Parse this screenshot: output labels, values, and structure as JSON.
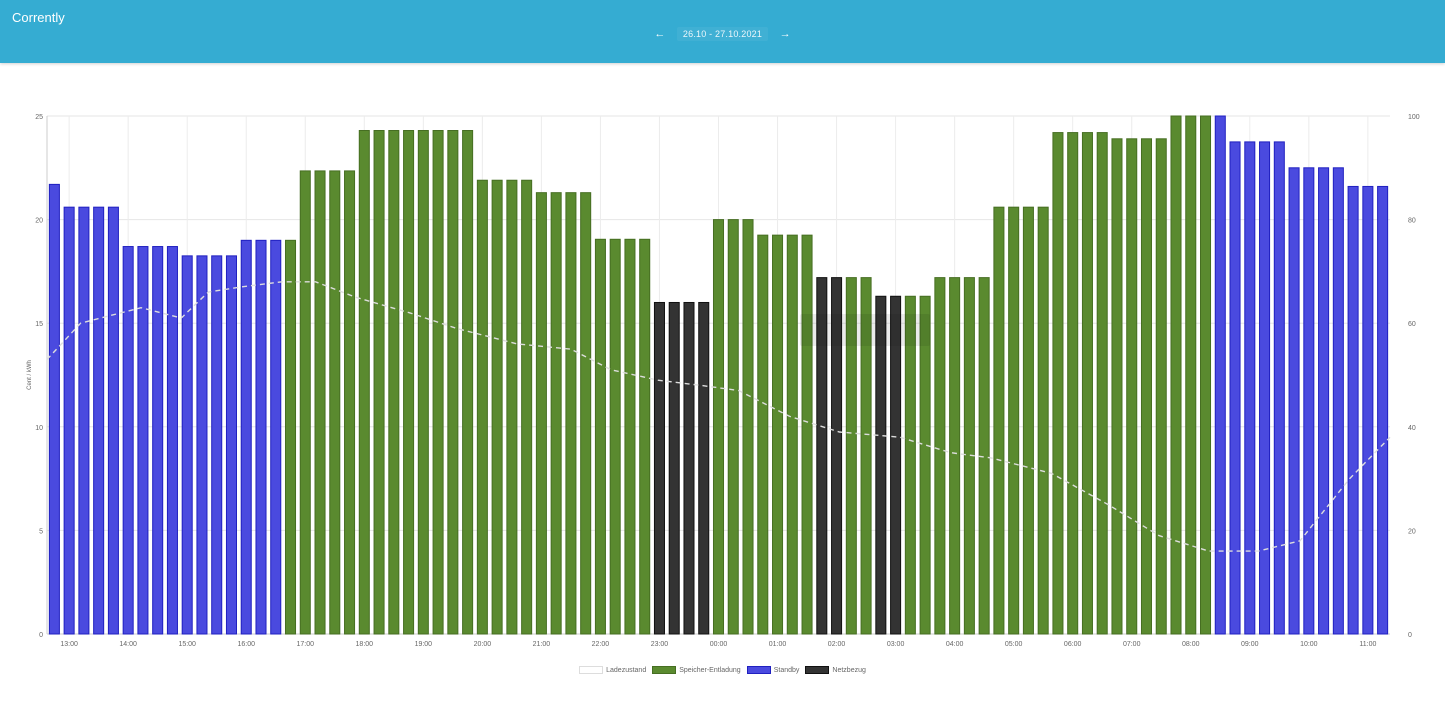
{
  "header": {
    "app_title": "Corrently",
    "prev_icon": "arrow-left-icon",
    "next_icon": "arrow-right-icon",
    "prev_glyph": "←",
    "next_glyph": "→",
    "date_range": "26.10 - 27.10.2021",
    "background_color": "#35acd2"
  },
  "chart_data": {
    "type": "bar",
    "title": "",
    "xlabel": "",
    "ylabel": "Cent / kWh",
    "ylim": [
      0,
      25
    ],
    "y_ticks": [
      0,
      5,
      10,
      15,
      20,
      25
    ],
    "y2label": "",
    "y2lim": [
      0,
      100
    ],
    "y2_ticks": [
      0,
      20,
      40,
      60,
      80,
      100
    ],
    "grid": true,
    "legend_position": "bottom",
    "x_tick_labels": [
      "13:00",
      "14:00",
      "15:00",
      "16:00",
      "17:00",
      "18:00",
      "19:00",
      "20:00",
      "21:00",
      "22:00",
      "23:00",
      "00:00",
      "01:00",
      "02:00",
      "03:00",
      "04:00",
      "05:00",
      "06:00",
      "07:00",
      "08:00",
      "09:00",
      "10:00",
      "11:00"
    ],
    "categories": [
      "12:45",
      "13:00",
      "13:15",
      "13:30",
      "13:45",
      "14:00",
      "14:15",
      "14:30",
      "14:45",
      "15:00",
      "15:15",
      "15:30",
      "15:45",
      "16:00",
      "16:15",
      "16:30",
      "16:45",
      "17:00",
      "17:15",
      "17:30",
      "17:45",
      "18:00",
      "18:15",
      "18:30",
      "18:45",
      "19:00",
      "19:15",
      "19:30",
      "19:45",
      "20:00",
      "20:15",
      "20:30",
      "20:45",
      "21:00",
      "21:15",
      "21:30",
      "21:45",
      "22:00",
      "22:15",
      "22:30",
      "22:45",
      "23:00",
      "23:15",
      "23:30",
      "23:45",
      "00:00",
      "00:15",
      "00:30",
      "00:45",
      "01:00",
      "01:15",
      "01:30",
      "01:45",
      "02:00",
      "02:15",
      "02:30",
      "02:45",
      "03:00",
      "03:15",
      "03:30",
      "03:45",
      "04:00",
      "04:15",
      "04:30",
      "04:45",
      "05:00",
      "05:15",
      "05:30",
      "05:45",
      "06:00",
      "06:15",
      "06:30",
      "06:45",
      "07:00",
      "07:15",
      "07:30",
      "07:45",
      "08:00",
      "08:15",
      "08:30",
      "08:45",
      "09:00",
      "09:15",
      "09:30",
      "09:45",
      "10:00",
      "10:15",
      "10:30",
      "10:45",
      "11:00",
      "11:15"
    ],
    "values": [
      21.7,
      20.6,
      20.6,
      20.6,
      20.6,
      18.7,
      18.7,
      18.7,
      18.7,
      18.25,
      18.25,
      18.25,
      18.25,
      19.0,
      19.0,
      19.0,
      19.0,
      22.35,
      22.35,
      22.35,
      22.35,
      24.3,
      24.3,
      24.3,
      24.3,
      24.3,
      24.3,
      24.3,
      24.3,
      21.9,
      21.9,
      21.9,
      21.9,
      21.3,
      21.3,
      21.3,
      21.3,
      19.05,
      19.05,
      19.05,
      19.05,
      16.0,
      16.0,
      16.0,
      16.0,
      20.0,
      20.0,
      20.0,
      19.25,
      19.25,
      19.25,
      19.25,
      17.2,
      17.2,
      17.2,
      17.2,
      16.3,
      16.3,
      16.3,
      16.3,
      17.2,
      17.2,
      17.2,
      17.2,
      20.6,
      20.6,
      20.6,
      20.6,
      24.2,
      24.2,
      24.2,
      24.2,
      23.9,
      23.9,
      23.9,
      23.9,
      25.0,
      25.0,
      25.0,
      25.0,
      23.75,
      23.75,
      23.75,
      23.75,
      22.5,
      22.5,
      22.5,
      22.5,
      21.6,
      21.6,
      21.6
    ],
    "bar_modes": [
      "S",
      "S",
      "S",
      "S",
      "S",
      "S",
      "S",
      "S",
      "S",
      "S",
      "S",
      "S",
      "S",
      "S",
      "S",
      "S",
      "E",
      "E",
      "E",
      "E",
      "E",
      "E",
      "E",
      "E",
      "E",
      "E",
      "E",
      "E",
      "E",
      "E",
      "E",
      "E",
      "E",
      "E",
      "E",
      "E",
      "E",
      "E",
      "E",
      "E",
      "E",
      "N",
      "N",
      "N",
      "N",
      "E",
      "E",
      "E",
      "E",
      "E",
      "E",
      "E",
      "N",
      "N",
      "E",
      "E",
      "N",
      "N",
      "E",
      "E",
      "E",
      "E",
      "E",
      "E",
      "E",
      "E",
      "E",
      "E",
      "E",
      "E",
      "E",
      "E",
      "E",
      "E",
      "E",
      "E",
      "E",
      "E",
      "E",
      "S",
      "S",
      "S",
      "S",
      "S",
      "S",
      "S",
      "S",
      "S",
      "S",
      "S",
      "S"
    ],
    "series": [
      {
        "name": "Ladezustand",
        "axis": "right",
        "style": "dashed-line",
        "color": "#dddddd",
        "x_frac": [
          0.0,
          0.025,
          0.07,
          0.1,
          0.12,
          0.145,
          0.175,
          0.2,
          0.23,
          0.27,
          0.305,
          0.35,
          0.39,
          0.42,
          0.455,
          0.487,
          0.515,
          0.553,
          0.59,
          0.635,
          0.673,
          0.703,
          0.748,
          0.79,
          0.828,
          0.865,
          0.902,
          0.933,
          0.97,
          1.0
        ],
        "values": [
          53,
          60,
          63,
          61,
          66,
          67,
          68,
          68,
          65,
          62,
          59,
          56,
          55,
          51,
          49,
          48,
          47,
          42,
          39,
          38,
          35,
          34,
          31,
          25,
          19,
          16,
          16,
          18,
          30,
          38
        ]
      },
      {
        "name": "Speicher-Entladung",
        "code": "E",
        "color": "#5a8a2f",
        "border": "#466e22"
      },
      {
        "name": "Standby",
        "code": "S",
        "color": "#4a4adf",
        "border": "#2020c0"
      },
      {
        "name": "Netzbezug",
        "code": "N",
        "color": "#333333",
        "border": "#111111"
      }
    ]
  },
  "legend": {
    "items": [
      {
        "label": "Ladezustand",
        "fill": "#ffffff",
        "border": "#dddddd"
      },
      {
        "label": "Speicher-Entladung",
        "fill": "#5a8a2f",
        "border": "#466e22"
      },
      {
        "label": "Standby",
        "fill": "#4a4adf",
        "border": "#2020c0"
      },
      {
        "label": "Netzbezug",
        "fill": "#333333",
        "border": "#111111"
      }
    ]
  }
}
